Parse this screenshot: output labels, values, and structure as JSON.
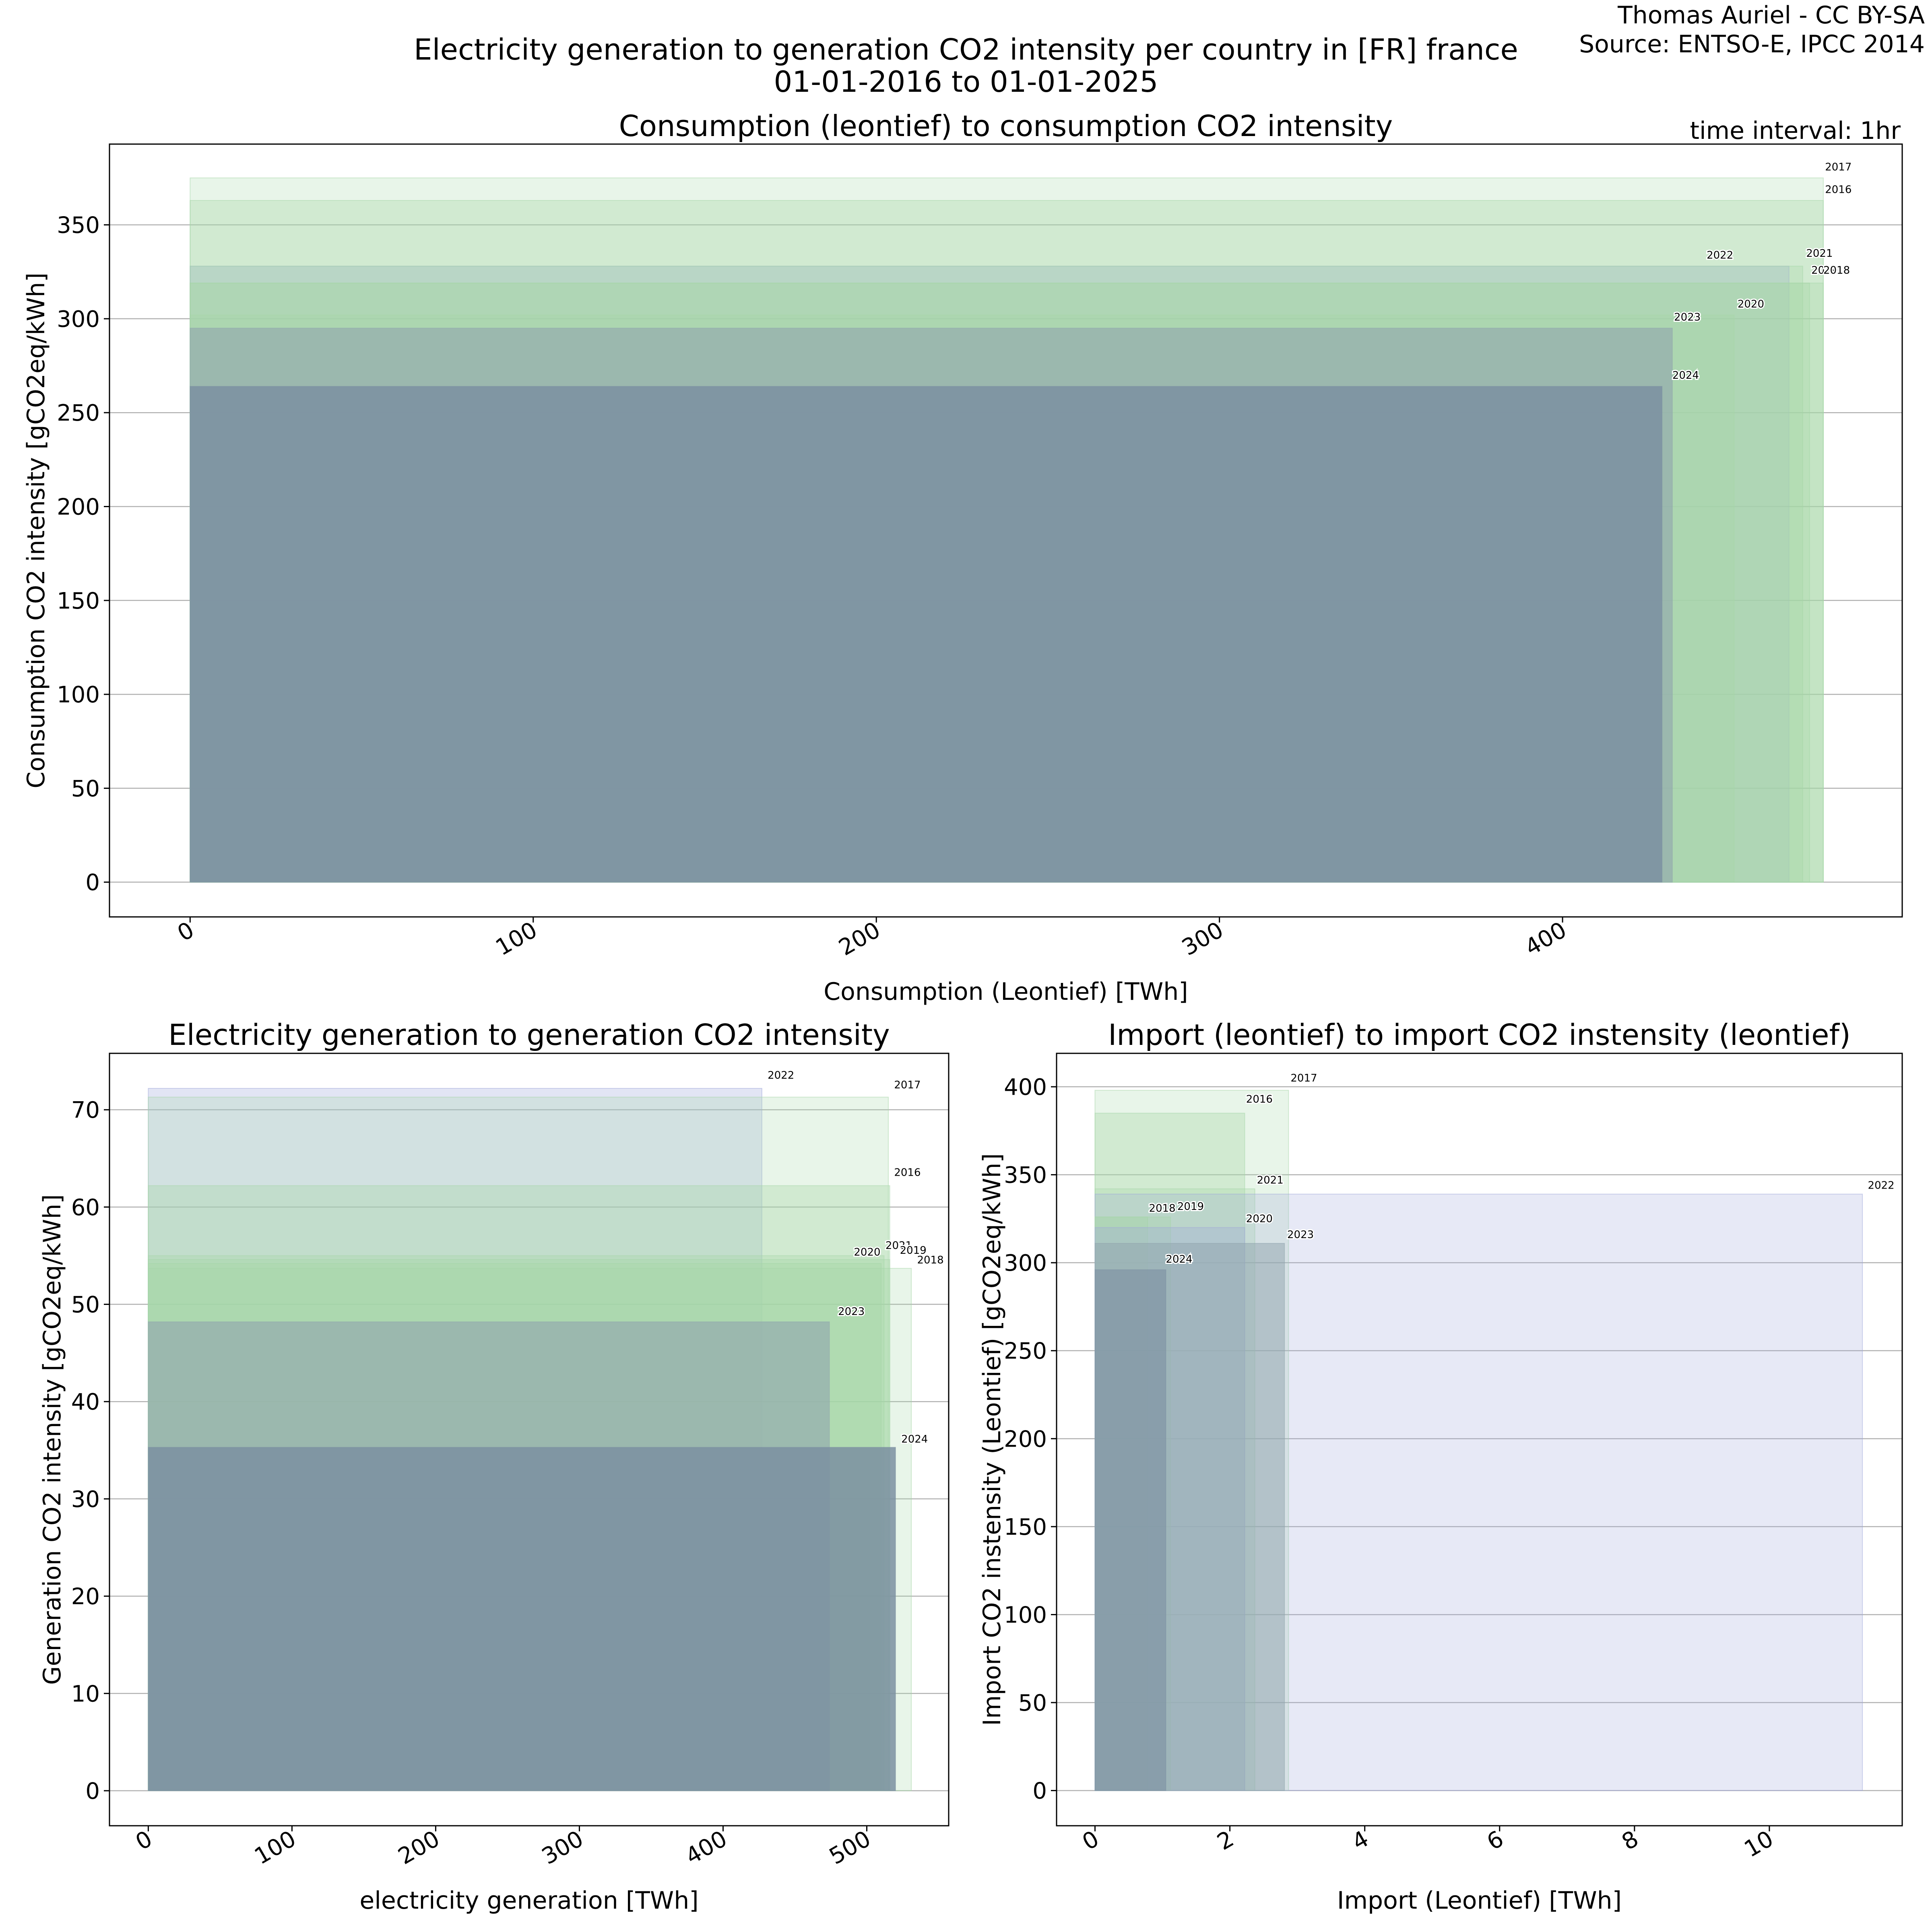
{
  "figure": {
    "author": "Thomas Auriel - CC BY-SA",
    "source": "Source: ENTSO-E, IPCC 2014",
    "title_line1": "Electricity generation to generation CO2 intensity per country in [FR] france",
    "title_line2": "01-01-2016 to 01-01-2025",
    "time_interval": "time interval: 1hr"
  },
  "chart_data": [
    {
      "id": "consumption",
      "type": "bar",
      "title": "Consumption (leontief) to consumption CO2 intensity",
      "xlabel": "Consumption (Leontief) [TWh]",
      "ylabel": "Consumption CO2 intensity [gCO2eq/kWh]",
      "xlim": [
        -23.5,
        499
      ],
      "ylim": [
        -18.5,
        393
      ],
      "xticks": [
        0,
        100,
        200,
        300,
        400
      ],
      "yticks": [
        0,
        50,
        100,
        150,
        200,
        250,
        300,
        350
      ],
      "grid": "horizontal",
      "series": [
        {
          "name": "2017",
          "x": 476,
          "y": 375,
          "color": "#a5d6a7",
          "opacity": 0.25,
          "label_x": 476.5,
          "label_y": 379
        },
        {
          "name": "2016",
          "x": 476,
          "y": 363,
          "color": "#a5d6a7",
          "opacity": 0.35,
          "label_x": 476.5,
          "label_y": 367
        },
        {
          "name": "2022",
          "x": 466,
          "y": 328,
          "color": "#9fa8da",
          "opacity": 0.3,
          "label_x": 442,
          "label_y": 332
        },
        {
          "name": "2021",
          "x": 470,
          "y": 328,
          "color": "#a5d6a7",
          "opacity": 0.3,
          "label_x": 471,
          "label_y": 333
        },
        {
          "name": "2019",
          "x": 472,
          "y": 319,
          "color": "#a5d6a7",
          "opacity": 0.3,
          "label_x": 472.5,
          "label_y": 324
        },
        {
          "name": "2018",
          "x": 476,
          "y": 319,
          "color": "#a5d6a7",
          "opacity": 0.3,
          "label_x": 476,
          "label_y": 324
        },
        {
          "name": "2020",
          "x": 450,
          "y": 302,
          "color": "#a5d6a7",
          "opacity": 0.3,
          "label_x": 451,
          "label_y": 306
        },
        {
          "name": "2023",
          "x": 432,
          "y": 295,
          "color": "#90a4ae",
          "opacity": 0.6,
          "label_x": 432.5,
          "label_y": 299
        },
        {
          "name": "2024",
          "x": 429,
          "y": 264,
          "color": "#7b8fa1",
          "opacity": 0.85,
          "label_x": 432,
          "label_y": 268
        }
      ]
    },
    {
      "id": "generation",
      "type": "bar",
      "title": "Electricity generation to generation CO2 intensity",
      "xlabel": "electricity generation [TWh]",
      "ylabel": "Generation CO2 intensity [gCO2eq/kWh]",
      "xlim": [
        -27,
        557
      ],
      "ylim": [
        -3.6,
        75.8
      ],
      "xticks": [
        0,
        100,
        200,
        300,
        400,
        500
      ],
      "yticks": [
        0,
        10,
        20,
        30,
        40,
        50,
        60,
        70
      ],
      "grid": "horizontal",
      "series": [
        {
          "name": "2022",
          "x": 427,
          "y": 72.2,
          "color": "#9fa8da",
          "opacity": 0.3,
          "label_x": 431,
          "label_y": 73.2
        },
        {
          "name": "2017",
          "x": 515,
          "y": 71.3,
          "color": "#a5d6a7",
          "opacity": 0.25,
          "label_x": 519,
          "label_y": 72.2
        },
        {
          "name": "2016",
          "x": 516,
          "y": 62.2,
          "color": "#a5d6a7",
          "opacity": 0.35,
          "label_x": 519,
          "label_y": 63.2
        },
        {
          "name": "2021",
          "x": 512,
          "y": 55,
          "color": "#a5d6a7",
          "opacity": 0.3,
          "label_x": 513,
          "label_y": 55.7
        },
        {
          "name": "2019",
          "x": 516,
          "y": 54.6,
          "color": "#a5d6a7",
          "opacity": 0.3,
          "label_x": 523,
          "label_y": 55.2
        },
        {
          "name": "2020",
          "x": 510,
          "y": 54.2,
          "color": "#a5d6a7",
          "opacity": 0.3,
          "label_x": 491,
          "label_y": 55
        },
        {
          "name": "2018",
          "x": 531,
          "y": 53.7,
          "color": "#a5d6a7",
          "opacity": 0.25,
          "label_x": 535,
          "label_y": 54.2
        },
        {
          "name": "2023",
          "x": 474,
          "y": 48.2,
          "color": "#90a4ae",
          "opacity": 0.6,
          "label_x": 480,
          "label_y": 48.9
        },
        {
          "name": "2024",
          "x": 520,
          "y": 35.3,
          "color": "#7b8fa1",
          "opacity": 0.85,
          "label_x": 524,
          "label_y": 35.8
        }
      ]
    },
    {
      "id": "import",
      "type": "bar",
      "title": "Import (leontief) to import CO2 instensity (leontief)",
      "xlabel": "Import (Leontief) [TWh]",
      "ylabel": "Import CO2 instensity (Leontief) [gCO2eq/kWh]",
      "xlim": [
        -0.57,
        11.97
      ],
      "ylim": [
        -20,
        419
      ],
      "xticks": [
        0,
        2,
        4,
        6,
        8,
        10
      ],
      "yticks": [
        0,
        50,
        100,
        150,
        200,
        250,
        300,
        350,
        400
      ],
      "grid": "horizontal",
      "series": [
        {
          "name": "2017",
          "x": 2.87,
          "y": 398,
          "color": "#a5d6a7",
          "opacity": 0.25,
          "label_x": 2.9,
          "label_y": 403
        },
        {
          "name": "2016",
          "x": 2.22,
          "y": 385,
          "color": "#a5d6a7",
          "opacity": 0.35,
          "label_x": 2.24,
          "label_y": 391
        },
        {
          "name": "2021",
          "x": 2.37,
          "y": 342,
          "color": "#a5d6a7",
          "opacity": 0.3,
          "label_x": 2.4,
          "label_y": 345
        },
        {
          "name": "2022",
          "x": 11.38,
          "y": 339,
          "color": "#9fa8da",
          "opacity": 0.25,
          "label_x": 11.46,
          "label_y": 342
        },
        {
          "name": "2019",
          "x": 1.12,
          "y": 326,
          "color": "#a5d6a7",
          "opacity": 0.3,
          "label_x": 1.22,
          "label_y": 330
        },
        {
          "name": "2018",
          "x": 0.78,
          "y": 326,
          "color": "#a5d6a7",
          "opacity": 0.3,
          "label_x": 0.8,
          "label_y": 329
        },
        {
          "name": "2020",
          "x": 2.22,
          "y": 320,
          "color": "#9fa8da",
          "opacity": 0.3,
          "label_x": 2.24,
          "label_y": 323
        },
        {
          "name": "2023",
          "x": 2.81,
          "y": 311,
          "color": "#90a4ae",
          "opacity": 0.5,
          "label_x": 2.85,
          "label_y": 314
        },
        {
          "name": "2024",
          "x": 1.05,
          "y": 296,
          "color": "#7b8fa1",
          "opacity": 0.6,
          "label_x": 1.05,
          "label_y": 300
        }
      ]
    }
  ]
}
